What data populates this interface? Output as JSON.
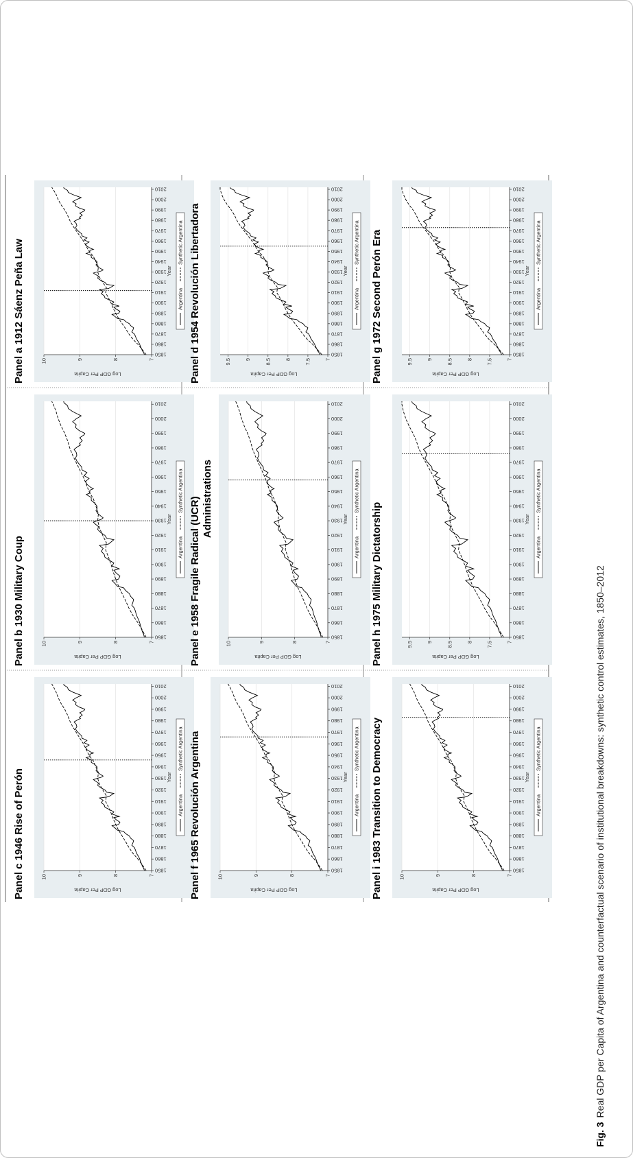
{
  "figure": {
    "label": "Fig. 3",
    "caption": "Real GDP per Capita of Argentina and counterfactual scenario of institutional breakdowns: synthetic control estimates, 1850–2012"
  },
  "chart_data": [
    {
      "type": "line",
      "panel": "a",
      "title": "Panel a  1912 Sáenz Peña Law",
      "title2": "",
      "xlabel": "Year",
      "ylabel": "Log GDP Per Capita",
      "xlim": [
        1850,
        2012
      ],
      "ylim": [
        7,
        10
      ],
      "yticks": [
        7,
        8,
        9,
        10
      ],
      "xticks": [
        1850,
        1860,
        1870,
        1880,
        1890,
        1900,
        1910,
        1920,
        1930,
        1940,
        1950,
        1960,
        1970,
        1980,
        1990,
        2000,
        2010
      ],
      "treatment_year": 1912,
      "grid": true,
      "legend_position": "bottom",
      "series": [
        {
          "name": "Argentina",
          "style": "solid"
        },
        {
          "name": "Synthetic Argentina",
          "style": "dashed"
        }
      ]
    },
    {
      "type": "line",
      "panel": "b",
      "title": "Panel b  1930 Military Coup",
      "title2": "",
      "xlabel": "Year",
      "ylabel": "Log GDP Per Capita",
      "xlim": [
        1850,
        2012
      ],
      "ylim": [
        7,
        10
      ],
      "yticks": [
        7,
        8,
        9,
        10
      ],
      "xticks": [
        1850,
        1860,
        1870,
        1880,
        1890,
        1900,
        1910,
        1920,
        1930,
        1940,
        1950,
        1960,
        1970,
        1980,
        1990,
        2000,
        2010
      ],
      "treatment_year": 1930,
      "grid": true,
      "legend_position": "bottom",
      "series": [
        {
          "name": "Argentina",
          "style": "solid"
        },
        {
          "name": "Synthetic Argentina",
          "style": "dashed"
        }
      ]
    },
    {
      "type": "line",
      "panel": "c",
      "title": "Panel c  1946 Rise of Perón",
      "title2": "",
      "xlabel": "Year",
      "ylabel": "Log GDP Per Capita",
      "xlim": [
        1850,
        2012
      ],
      "ylim": [
        7,
        10
      ],
      "yticks": [
        7,
        8,
        9,
        10
      ],
      "xticks": [
        1850,
        1860,
        1870,
        1880,
        1890,
        1900,
        1910,
        1920,
        1930,
        1940,
        1950,
        1960,
        1970,
        1980,
        1990,
        2000,
        2010
      ],
      "treatment_year": 1946,
      "grid": true,
      "legend_position": "bottom",
      "series": [
        {
          "name": "Argentina",
          "style": "solid"
        },
        {
          "name": "Synthetic Argentina",
          "style": "dashed"
        }
      ]
    },
    {
      "type": "line",
      "panel": "d",
      "title": "Panel d  1954 Revolución Libertadora",
      "title2": "",
      "xlabel": "Year",
      "ylabel": "Log GDP Per Capita",
      "xlim": [
        1850,
        2012
      ],
      "ylim": [
        7,
        9.7
      ],
      "yticks": [
        7,
        7.5,
        8,
        8.5,
        9,
        9.5
      ],
      "xticks": [
        1850,
        1860,
        1870,
        1880,
        1890,
        1900,
        1910,
        1920,
        1930,
        1940,
        1950,
        1960,
        1970,
        1980,
        1990,
        2000,
        2010
      ],
      "treatment_year": 1955,
      "grid": true,
      "legend_position": "bottom",
      "series": [
        {
          "name": "Argentina",
          "style": "solid"
        },
        {
          "name": "Synthetic Argentina",
          "style": "dashed"
        }
      ]
    },
    {
      "type": "line",
      "panel": "e",
      "title": "Panel e  1958 Fragile Radical (UCR)",
      "title2": "Administrations",
      "xlabel": "Year",
      "ylabel": "Log GDP Per Capita",
      "xlim": [
        1850,
        2012
      ],
      "ylim": [
        7,
        10
      ],
      "yticks": [
        7,
        8,
        9,
        10
      ],
      "xticks": [
        1850,
        1860,
        1870,
        1880,
        1890,
        1900,
        1910,
        1920,
        1930,
        1940,
        1950,
        1960,
        1970,
        1980,
        1990,
        2000,
        2010
      ],
      "treatment_year": 1958,
      "grid": true,
      "legend_position": "bottom",
      "series": [
        {
          "name": "Argentina",
          "style": "solid"
        },
        {
          "name": "Synthetic Argentina",
          "style": "dashed"
        }
      ]
    },
    {
      "type": "line",
      "panel": "f",
      "title": "Panel f  1965 Revolución Argentina",
      "title2": "",
      "xlabel": "Year",
      "ylabel": "Log GDP Per Capita",
      "xlim": [
        1850,
        2012
      ],
      "ylim": [
        7,
        10
      ],
      "yticks": [
        7,
        8,
        9,
        10
      ],
      "xticks": [
        1850,
        1860,
        1870,
        1880,
        1890,
        1900,
        1910,
        1920,
        1930,
        1940,
        1950,
        1960,
        1970,
        1980,
        1990,
        2000,
        2010
      ],
      "treatment_year": 1966,
      "grid": true,
      "legend_position": "bottom",
      "series": [
        {
          "name": "Argentina",
          "style": "solid"
        },
        {
          "name": "Synthetic Argentina",
          "style": "dashed"
        }
      ]
    },
    {
      "type": "line",
      "panel": "g",
      "title": "Panel g  1972 Second Perón Era",
      "title2": "",
      "xlabel": "Year",
      "ylabel": "Log GDP Per Capita",
      "xlim": [
        1850,
        2012
      ],
      "ylim": [
        7,
        9.7
      ],
      "yticks": [
        7,
        7.5,
        8,
        8.5,
        9,
        9.5
      ],
      "xticks": [
        1850,
        1860,
        1870,
        1880,
        1890,
        1900,
        1910,
        1920,
        1930,
        1940,
        1950,
        1960,
        1970,
        1980,
        1990,
        2000,
        2010
      ],
      "treatment_year": 1973,
      "grid": true,
      "legend_position": "bottom",
      "series": [
        {
          "name": "Argentina",
          "style": "solid"
        },
        {
          "name": "Synthetic Argentina",
          "style": "dashed"
        }
      ]
    },
    {
      "type": "line",
      "panel": "h",
      "title": "Panel h  1975 Military Dictatorship",
      "title2": "",
      "xlabel": "Year",
      "ylabel": "Log GDP Per Capita",
      "xlim": [
        1850,
        2012
      ],
      "ylim": [
        7,
        9.7
      ],
      "yticks": [
        7,
        7.5,
        8,
        8.5,
        9,
        9.5
      ],
      "xticks": [
        1850,
        1860,
        1870,
        1880,
        1890,
        1900,
        1910,
        1920,
        1930,
        1940,
        1950,
        1960,
        1970,
        1980,
        1990,
        2000,
        2010
      ],
      "treatment_year": 1976,
      "grid": true,
      "legend_position": "bottom",
      "series": [
        {
          "name": "Argentina",
          "style": "solid"
        },
        {
          "name": "Synthetic Argentina",
          "style": "dashed"
        }
      ]
    },
    {
      "type": "line",
      "panel": "i",
      "title": "Panel i  1983 Transition to Democracy",
      "title2": "",
      "xlabel": "Year",
      "ylabel": "Log GDP Per Capita",
      "xlim": [
        1850,
        2012
      ],
      "ylim": [
        7,
        10
      ],
      "yticks": [
        7,
        8,
        9,
        10
      ],
      "xticks": [
        1850,
        1860,
        1870,
        1880,
        1890,
        1900,
        1910,
        1920,
        1930,
        1940,
        1950,
        1960,
        1970,
        1980,
        1990,
        2000,
        2010
      ],
      "treatment_year": 1983,
      "grid": true,
      "legend_position": "bottom",
      "series": [
        {
          "name": "Argentina",
          "style": "solid"
        },
        {
          "name": "Synthetic Argentina",
          "style": "dashed"
        }
      ]
    }
  ],
  "argentina_series": [
    [
      1850,
      7.2
    ],
    [
      1852,
      7.22
    ],
    [
      1854,
      7.26
    ],
    [
      1856,
      7.28
    ],
    [
      1858,
      7.31
    ],
    [
      1860,
      7.33
    ],
    [
      1862,
      7.36
    ],
    [
      1864,
      7.4
    ],
    [
      1866,
      7.43
    ],
    [
      1868,
      7.45
    ],
    [
      1870,
      7.48
    ],
    [
      1872,
      7.55
    ],
    [
      1874,
      7.52
    ],
    [
      1876,
      7.5
    ],
    [
      1878,
      7.58
    ],
    [
      1880,
      7.62
    ],
    [
      1882,
      7.72
    ],
    [
      1884,
      7.78
    ],
    [
      1885,
      7.95
    ],
    [
      1887,
      8.02
    ],
    [
      1889,
      8.1
    ],
    [
      1890,
      7.92
    ],
    [
      1892,
      7.88
    ],
    [
      1894,
      7.98
    ],
    [
      1896,
      8.05
    ],
    [
      1897,
      7.9
    ],
    [
      1899,
      8.1
    ],
    [
      1901,
      8.05
    ],
    [
      1903,
      8.18
    ],
    [
      1905,
      8.3
    ],
    [
      1907,
      8.32
    ],
    [
      1909,
      8.4
    ],
    [
      1911,
      8.35
    ],
    [
      1913,
      8.45
    ],
    [
      1914,
      8.2
    ],
    [
      1915,
      8.15
    ],
    [
      1917,
      8.05
    ],
    [
      1918,
      8.25
    ],
    [
      1920,
      8.3
    ],
    [
      1922,
      8.42
    ],
    [
      1924,
      8.5
    ],
    [
      1926,
      8.48
    ],
    [
      1928,
      8.58
    ],
    [
      1929,
      8.62
    ],
    [
      1930,
      8.52
    ],
    [
      1931,
      8.4
    ],
    [
      1932,
      8.35
    ],
    [
      1933,
      8.4
    ],
    [
      1935,
      8.5
    ],
    [
      1937,
      8.55
    ],
    [
      1938,
      8.52
    ],
    [
      1940,
      8.52
    ],
    [
      1942,
      8.58
    ],
    [
      1944,
      8.68
    ],
    [
      1946,
      8.68
    ],
    [
      1948,
      8.82
    ],
    [
      1949,
      8.72
    ],
    [
      1951,
      8.72
    ],
    [
      1952,
      8.62
    ],
    [
      1953,
      8.7
    ],
    [
      1955,
      8.8
    ],
    [
      1957,
      8.84
    ],
    [
      1959,
      8.74
    ],
    [
      1961,
      8.88
    ],
    [
      1963,
      8.8
    ],
    [
      1965,
      8.94
    ],
    [
      1967,
      8.95
    ],
    [
      1969,
      9.02
    ],
    [
      1971,
      9.08
    ],
    [
      1973,
      9.12
    ],
    [
      1975,
      9.08
    ],
    [
      1977,
      9.1
    ],
    [
      1979,
      9.16
    ],
    [
      1981,
      9.05
    ],
    [
      1982,
      8.98
    ],
    [
      1983,
      9.01
    ],
    [
      1985,
      8.93
    ],
    [
      1987,
      9.0
    ],
    [
      1989,
      8.88
    ],
    [
      1990,
      8.86
    ],
    [
      1992,
      9.02
    ],
    [
      1994,
      9.12
    ],
    [
      1996,
      9.1
    ],
    [
      1998,
      9.2
    ],
    [
      2000,
      9.1
    ],
    [
      2002,
      8.96
    ],
    [
      2003,
      9.04
    ],
    [
      2005,
      9.2
    ],
    [
      2007,
      9.32
    ],
    [
      2009,
      9.34
    ],
    [
      2011,
      9.44
    ],
    [
      2012,
      9.45
    ]
  ],
  "synthetic_series": [
    [
      1850,
      7.15
    ],
    [
      1855,
      7.26
    ],
    [
      1860,
      7.38
    ],
    [
      1865,
      7.52
    ],
    [
      1870,
      7.63
    ],
    [
      1875,
      7.72
    ],
    [
      1880,
      7.82
    ],
    [
      1885,
      7.92
    ],
    [
      1890,
      8.0
    ],
    [
      1895,
      8.07
    ],
    [
      1900,
      8.13
    ],
    [
      1905,
      8.2
    ],
    [
      1910,
      8.28
    ],
    [
      1915,
      8.26
    ],
    [
      1920,
      8.36
    ],
    [
      1925,
      8.45
    ],
    [
      1930,
      8.5
    ],
    [
      1935,
      8.48
    ],
    [
      1940,
      8.55
    ],
    [
      1945,
      8.62
    ],
    [
      1950,
      8.74
    ],
    [
      1955,
      8.82
    ],
    [
      1960,
      8.9
    ],
    [
      1965,
      9.0
    ],
    [
      1970,
      9.1
    ],
    [
      1975,
      9.2
    ],
    [
      1980,
      9.28
    ],
    [
      1985,
      9.34
    ],
    [
      1990,
      9.42
    ],
    [
      1995,
      9.52
    ],
    [
      2000,
      9.6
    ],
    [
      2005,
      9.66
    ],
    [
      2010,
      9.74
    ],
    [
      2012,
      9.78
    ]
  ]
}
